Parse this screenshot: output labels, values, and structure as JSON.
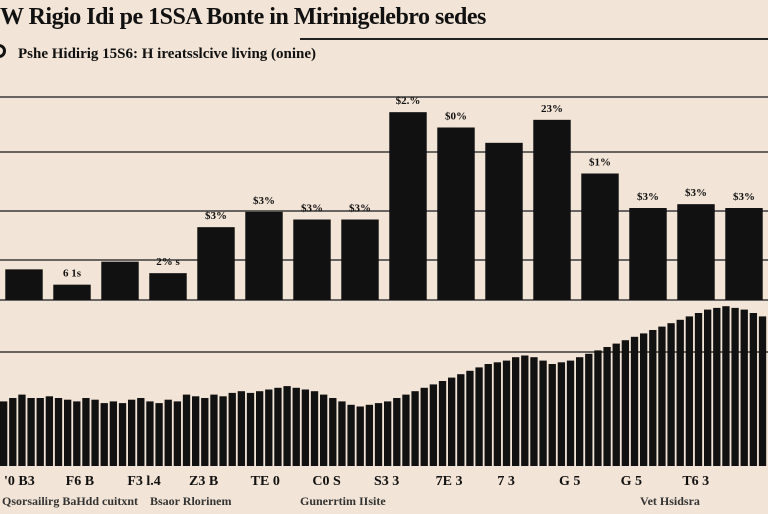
{
  "title": "W Rigio Idi pe 1SSA Bonte in Mirinigelebro sedes",
  "subtitle": "Pshe Hidirig 15S6: H ireatsslcive living (onine)",
  "colors": {
    "background": "#f2e4d6",
    "ink": "#111111",
    "grid": "#3a3a3a"
  },
  "chart_data": [
    {
      "type": "bar",
      "values": [
        8,
        4,
        10,
        7,
        19,
        23,
        21,
        21,
        49,
        45,
        41,
        47,
        33,
        24,
        25,
        24
      ],
      "data_labels": [
        "",
        "6 1s",
        "",
        "2% s",
        "$3%",
        "$3%",
        "$3%",
        "$3%",
        "$2.%",
        "$0%",
        "",
        "23%",
        "$1%",
        "$3%",
        "$3%",
        "$3%"
      ],
      "ylim": [
        0,
        60
      ],
      "grid": true
    },
    {
      "type": "bar",
      "values": [
        38,
        40,
        42,
        40,
        40,
        41,
        40,
        39,
        38,
        40,
        39,
        37,
        38,
        37,
        39,
        40,
        38,
        37,
        39,
        38,
        42,
        41,
        40,
        42,
        41,
        43,
        44,
        43,
        44,
        45,
        46,
        47,
        46,
        45,
        44,
        42,
        40,
        38,
        36,
        35,
        36,
        37,
        38,
        40,
        42,
        44,
        46,
        48,
        50,
        52,
        54,
        56,
        58,
        60,
        61,
        62,
        64,
        65,
        64,
        62,
        60,
        61,
        62,
        64,
        66,
        68,
        70,
        72,
        74,
        76,
        78,
        80,
        82,
        84,
        86,
        88,
        90,
        92,
        93,
        94,
        93,
        92,
        90,
        88
      ],
      "ylim": [
        0,
        100
      ]
    }
  ],
  "x_labels": [
    "'0 B3",
    "F6 B",
    "F3 l.4",
    "Z3 B",
    "TE 0",
    "C0 S",
    "S3 3",
    "7E 3",
    "7 3",
    "G 5",
    "G 5",
    "T6 3"
  ],
  "footer_notes": [
    "Qsorsailirg BaHdd cuitxnt",
    "Bsaor Rlorinem",
    "Gunerrtim IIsite",
    "Vet Hsidsra"
  ]
}
